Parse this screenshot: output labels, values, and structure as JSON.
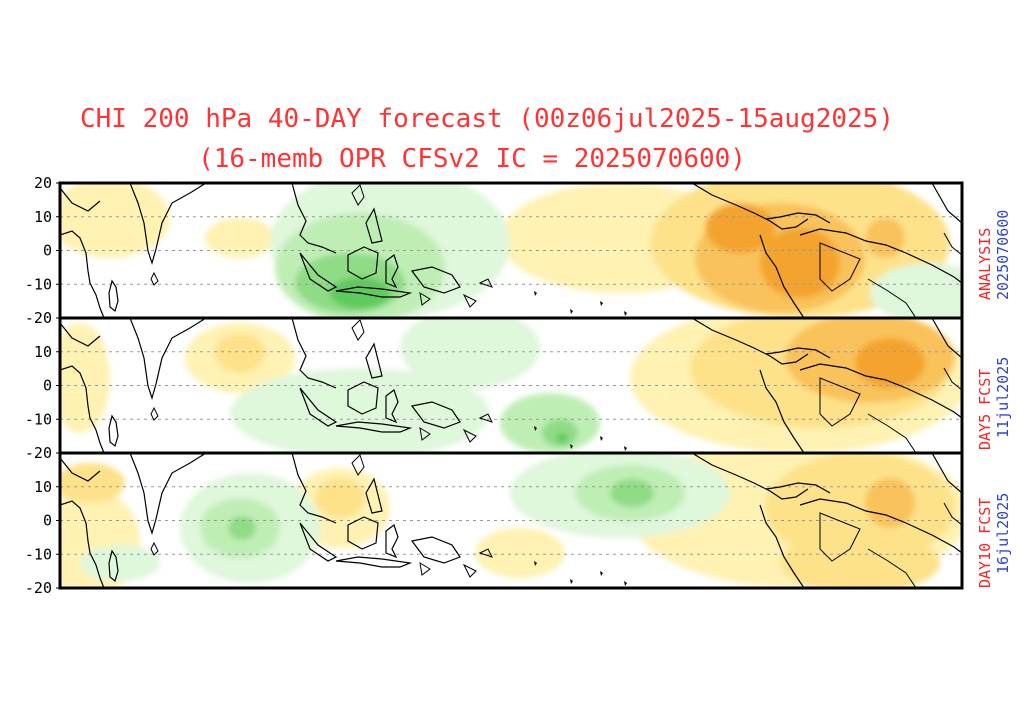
{
  "title_line1": "CHI 200 hPa 40-DAY forecast (00z06jul2025-15aug2025)",
  "title_line2": "(16-memb OPR CFSv2 IC = 2025070600)",
  "colors": {
    "title": "#ff3333",
    "side_red": "#ff2222",
    "side_blue": "#3344cc",
    "positive_light": "#fff2b3",
    "positive_mid": "#fde28a",
    "positive_strong": "#f9c25a",
    "positive_max": "#f4a42e",
    "negative_light": "#dff7db",
    "negative_mid": "#bfeeb5",
    "negative_strong": "#8fdc86",
    "negative_max": "#5ecb5c"
  },
  "panels": [
    {
      "name": "analysis",
      "label_red": "ANALYSIS",
      "label_blue": "2025070600"
    },
    {
      "name": "day5",
      "label_red": "DAY5 FCST",
      "label_blue": "11jul2025"
    },
    {
      "name": "day10",
      "label_red": "DAY10 FCST",
      "label_blue": "16jul2025"
    }
  ],
  "y_axis": {
    "ticks": [
      "20",
      "10",
      "0",
      "-10",
      "-20"
    ],
    "lat_values": [
      20,
      10,
      0,
      -10,
      -20
    ]
  }
}
